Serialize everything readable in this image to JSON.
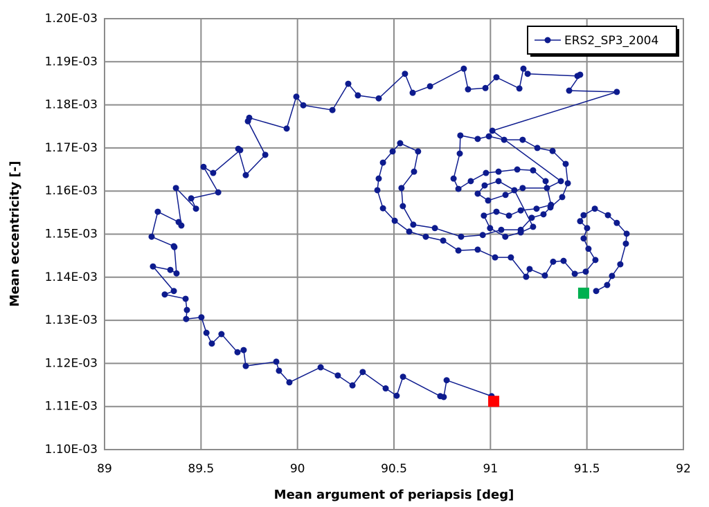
{
  "chart_data": {
    "type": "line",
    "xlabel": "Mean argument of periapsis [deg]",
    "ylabel": "Mean eccentricity [-]",
    "xlim": [
      89,
      92
    ],
    "xticks": [
      89,
      89.5,
      90,
      90.5,
      91,
      91.5,
      92
    ],
    "ylim": [
      0.0011,
      0.0012
    ],
    "yticks": [
      {
        "value": 0.0011,
        "label": "1.10E-03"
      },
      {
        "value": 0.00111,
        "label": "1.11E-03"
      },
      {
        "value": 0.00112,
        "label": "1.12E-03"
      },
      {
        "value": 0.00113,
        "label": "1.13E-03"
      },
      {
        "value": 0.00114,
        "label": "1.14E-03"
      },
      {
        "value": 0.00115,
        "label": "1.15E-03"
      },
      {
        "value": 0.00116,
        "label": "1.16E-03"
      },
      {
        "value": 0.00117,
        "label": "1.17E-03"
      },
      {
        "value": 0.00118,
        "label": "1.18E-03"
      },
      {
        "value": 0.00119,
        "label": "1.19E-03"
      },
      {
        "value": 0.0012,
        "label": "1.20E-03"
      }
    ],
    "grid": true,
    "legend": "top-right",
    "x": [
      91.548,
      91.605,
      91.63,
      91.673,
      91.702,
      91.706,
      91.655,
      91.609,
      91.541,
      91.483,
      91.465,
      91.501,
      91.483,
      91.508,
      91.544,
      91.494,
      91.437,
      91.379,
      91.325,
      91.282,
      91.203,
      91.185,
      91.106,
      91.024,
      90.934,
      90.834,
      90.755,
      90.665,
      90.579,
      90.504,
      90.443,
      90.414,
      90.421,
      90.443,
      90.493,
      90.532,
      90.625,
      90.604,
      90.539,
      90.546,
      90.6,
      90.712,
      90.848,
      90.96,
      91.056,
      91.157,
      91.214,
      91.275,
      91.311,
      91.372,
      91.401,
      91.39,
      91.322,
      91.243,
      91.167,
      91.071,
      90.992,
      90.934,
      90.844,
      90.841,
      90.809,
      90.834,
      90.898,
      90.977,
      91.042,
      91.139,
      91.221,
      91.286,
      91.314,
      91.239,
      91.157,
      91.096,
      91.031,
      90.966,
      90.998,
      91.077,
      91.157,
      91.221,
      91.124,
      91.042,
      90.97,
      90.934,
      90.988,
      91.078,
      91.167,
      91.293,
      91.365,
      91.01,
      91.655,
      91.408,
      91.465,
      91.451,
      91.193,
      91.171,
      91.15,
      91.031,
      90.974,
      90.884,
      90.862,
      90.687,
      90.597,
      90.557,
      90.421,
      90.313,
      90.263,
      90.181,
      90.03,
      89.994,
      89.944,
      89.75,
      89.743,
      89.833,
      89.732,
      89.693,
      89.703,
      89.563,
      89.513,
      89.589,
      89.449,
      89.474,
      89.37,
      89.398,
      89.384,
      89.276,
      89.244,
      89.359,
      89.362,
      89.373,
      89.341,
      89.251,
      89.359,
      89.312,
      89.42,
      89.427,
      89.423,
      89.502,
      89.528,
      89.556,
      89.606,
      89.689,
      89.721,
      89.732,
      89.89,
      89.904,
      89.958,
      90.12,
      90.209,
      90.285,
      90.338,
      90.457,
      90.514,
      90.547,
      90.74,
      90.758,
      90.773,
      91.006
    ],
    "series": [
      {
        "name": "ERS2_SP3_2004",
        "color": "#0d1b8e",
        "values": [
          0.0011368,
          0.0011382,
          0.0011403,
          0.001143,
          0.0011478,
          0.0011501,
          0.0011526,
          0.0011544,
          0.0011559,
          0.0011544,
          0.001153,
          0.0011514,
          0.001149,
          0.0011466,
          0.001144,
          0.0011413,
          0.0011408,
          0.0011438,
          0.0011436,
          0.0011404,
          0.0011419,
          0.0011401,
          0.0011446,
          0.0011446,
          0.0011464,
          0.0011462,
          0.0011485,
          0.0011494,
          0.0011506,
          0.0011531,
          0.001156,
          0.0011602,
          0.0011629,
          0.0011666,
          0.0011692,
          0.0011711,
          0.0011692,
          0.0011645,
          0.0011607,
          0.0011565,
          0.0011522,
          0.0011514,
          0.0011494,
          0.0011498,
          0.001151,
          0.001151,
          0.0011538,
          0.0011546,
          0.0011562,
          0.0011586,
          0.0011618,
          0.0011663,
          0.0011693,
          0.00117,
          0.0011719,
          0.0011719,
          0.0011727,
          0.0011721,
          0.0011729,
          0.0011687,
          0.0011629,
          0.0011605,
          0.0011623,
          0.0011642,
          0.0011645,
          0.001165,
          0.0011648,
          0.0011623,
          0.0011568,
          0.0011559,
          0.0011555,
          0.0011543,
          0.0011552,
          0.0011543,
          0.0011514,
          0.0011494,
          0.0011504,
          0.0011517,
          0.0011602,
          0.0011623,
          0.0011613,
          0.0011594,
          0.0011578,
          0.0011591,
          0.0011607,
          0.0011607,
          0.0011623,
          0.001174,
          0.001183,
          0.0011833,
          0.001187,
          0.0011867,
          0.0011872,
          0.0011884,
          0.0011838,
          0.0011864,
          0.0011839,
          0.0011836,
          0.0011884,
          0.0011843,
          0.0011828,
          0.0011872,
          0.0011815,
          0.0011822,
          0.0011849,
          0.0011788,
          0.0011799,
          0.0011819,
          0.0011745,
          0.001177,
          0.0011762,
          0.0011684,
          0.0011637,
          0.0011698,
          0.0011695,
          0.0011642,
          0.0011656,
          0.0011597,
          0.0011583,
          0.0011559,
          0.0011607,
          0.001152,
          0.0011528,
          0.0011552,
          0.0011494,
          0.0011472,
          0.001147,
          0.0011409,
          0.0011417,
          0.0011425,
          0.0011368,
          0.001136,
          0.001135,
          0.0011324,
          0.0011303,
          0.0011307,
          0.0011271,
          0.0011246,
          0.0011268,
          0.0011226,
          0.0011231,
          0.0011194,
          0.0011204,
          0.0011183,
          0.0011156,
          0.0011191,
          0.0011172,
          0.0011149,
          0.001118,
          0.0011142,
          0.0011125,
          0.0011169,
          0.0011124,
          0.0011122,
          0.0011161,
          0.0011124
        ]
      }
    ],
    "markers": [
      {
        "color": "#00b050",
        "x": 91.483,
        "y": 0.0011363
      },
      {
        "color": "#ff0000",
        "x": 91.017,
        "y": 0.0011112
      }
    ]
  }
}
